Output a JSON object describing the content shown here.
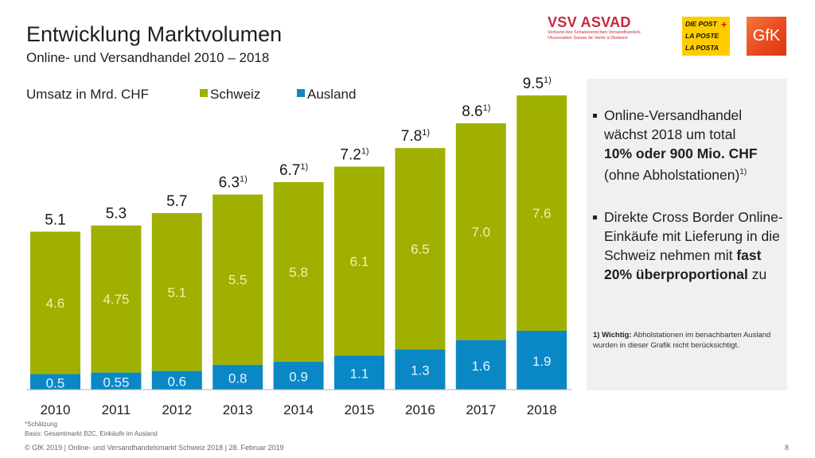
{
  "header": {
    "title": "Entwicklung Marktvolumen",
    "subtitle": "Online- und Versandhandel 2010 – 2018"
  },
  "logos": {
    "vsv": {
      "name": "VSV ASVAD",
      "line1": "Verband des Schweizerischen Versandhandels",
      "line2": "l'Association Suisse de Vente à Distance"
    },
    "post": {
      "lines": [
        "DIE POST",
        "LA POSTE",
        "LA POSTA"
      ],
      "cross": "+"
    },
    "gfk": {
      "name": "GfK"
    }
  },
  "chart_data": {
    "type": "bar",
    "stacked": true,
    "title": "Umsatz in Mrd. CHF",
    "xlabel": "",
    "ylabel": "Umsatz in Mrd. CHF",
    "categories": [
      "2010",
      "2011",
      "2012",
      "2013",
      "2014",
      "2015",
      "2016",
      "2017",
      "2018"
    ],
    "series": [
      {
        "name": "Ausland",
        "color": "#0a88c6",
        "values": [
          0.5,
          0.55,
          0.6,
          0.8,
          0.9,
          1.1,
          1.3,
          1.6,
          1.9
        ],
        "labels": [
          "0.5",
          "0.55",
          "0.6",
          "0.8",
          "0.9",
          "1.1",
          "1.3",
          "1.6",
          "1.9"
        ]
      },
      {
        "name": "Schweiz",
        "color": "#a0b000",
        "values": [
          4.6,
          4.75,
          5.1,
          5.5,
          5.8,
          6.1,
          6.5,
          7.0,
          7.6
        ],
        "labels": [
          "4.6",
          "4.75",
          "5.1",
          "5.5",
          "5.8",
          "6.1",
          "6.5",
          "7.0",
          "7.6"
        ]
      }
    ],
    "totals": [
      "5.1",
      "5.3",
      "5.7",
      "6.3",
      "6.7",
      "7.2",
      "7.8",
      "8.6",
      "9.5"
    ],
    "total_values": [
      5.1,
      5.3,
      5.7,
      6.3,
      6.7,
      7.2,
      7.8,
      8.6,
      9.5
    ],
    "total_footnote_marks": [
      "",
      "",
      "",
      "1)",
      "1)",
      "1)",
      "1)",
      "1)",
      "1)"
    ],
    "legend": [
      "Schweiz",
      "Ausland"
    ],
    "legend_position": "top",
    "ylim": [
      0,
      9.5
    ],
    "grid": false,
    "segment_label_color": "#f5f0b0",
    "ausland_label_color": "#e6f4ff"
  },
  "panel": {
    "bullet1": {
      "line1": "Online-Versandhandel",
      "line2": "wächst 2018 um total",
      "bold": "10% oder 900 Mio. CHF",
      "line4": "(ohne Abholstationen)",
      "sup": "1)"
    },
    "bullet2": {
      "text1": "Direkte Cross Border Online-Einkäufe mit Lieferung in die Schweiz nehmen mit ",
      "bold1": "fast 20%",
      "space": " ",
      "bold2": "überproportional",
      "text2": " zu"
    },
    "note": {
      "bold": "1) Wichtig:",
      "text": " Abholstationen im benachbarten Ausland wurden in dieser Grafik nicht berücksichtigt."
    }
  },
  "footer": {
    "estimate": "*Schätzung",
    "basis": "Basis: Gesamtmarkt B2C, Einkäufe im Ausland",
    "copyright": "© GfK 2019 | Online- und Versandhandelsmarkt Schweiz 2018 | 28. Februar 2019",
    "page": "8"
  }
}
